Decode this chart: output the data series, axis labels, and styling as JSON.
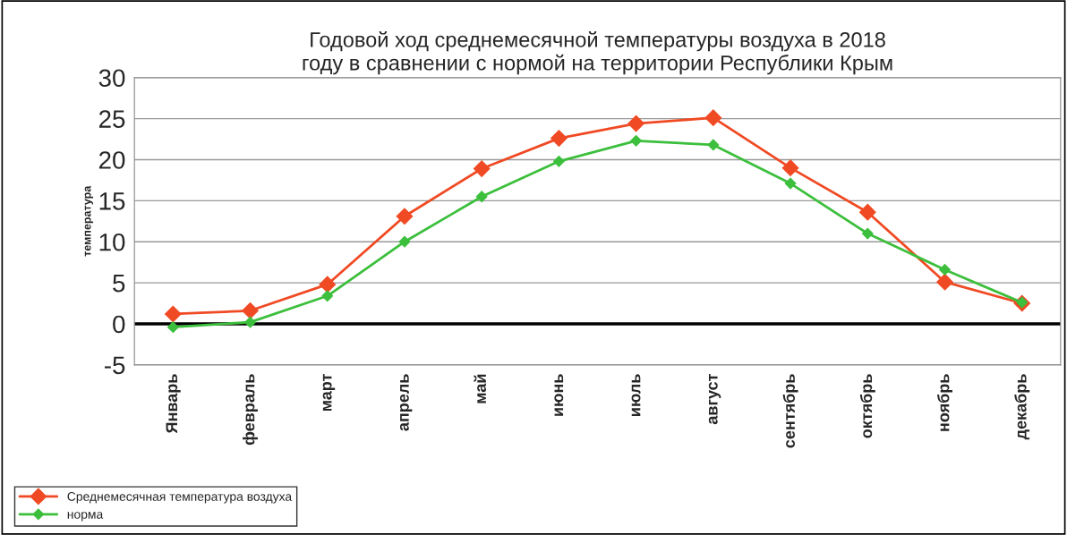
{
  "chart_data": {
    "type": "line",
    "title": "Годовой ход среднемесячной температуры воздуха в 2018\nгоду в сравнении с нормой на территории Республики Крым",
    "ylabel": "температура",
    "categories": [
      "Январь",
      "февраль",
      "март",
      "апрель",
      "май",
      "июнь",
      "июль",
      "август",
      "сентябрь",
      "октябрь",
      "ноябрь",
      "декабрь"
    ],
    "series": [
      {
        "name": "Среднемесячная температура воздуха",
        "color": "#f04a24",
        "values": [
          1.2,
          1.6,
          4.8,
          13.1,
          18.9,
          22.6,
          24.4,
          25.1,
          19.0,
          13.6,
          5.1,
          2.5
        ]
      },
      {
        "name": "норма",
        "color": "#3cbf3c",
        "values": [
          -0.4,
          0.2,
          3.4,
          10.0,
          15.5,
          19.8,
          22.3,
          21.8,
          17.1,
          11.0,
          6.6,
          2.6
        ]
      }
    ],
    "ylim": [
      -5,
      30
    ],
    "yticks": [
      -5,
      0,
      5,
      10,
      15,
      20,
      25,
      30
    ],
    "grid": "y",
    "legend": "bottom left",
    "marker": "diamond",
    "line_style": "solid",
    "ref_lines": [
      {
        "axis": "y",
        "value": 0,
        "color": "#000000"
      }
    ]
  }
}
